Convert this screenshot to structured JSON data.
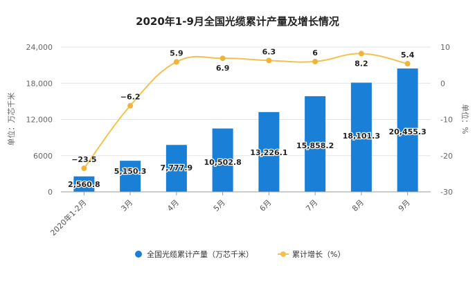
{
  "chart_data": {
    "type": "bar+line",
    "title": "2020年1-9月全国光缆累计产量及增长情况",
    "categories": [
      "2020年1-2月",
      "3月",
      "4月",
      "5月",
      "6月",
      "7月",
      "8月",
      "9月"
    ],
    "series": [
      {
        "name": "全国光缆累计产量（万芯千米）",
        "type": "bar",
        "axis": "left",
        "color": "#1a7fd6",
        "values": [
          2560.8,
          5150.3,
          7777.9,
          10502.8,
          13226.1,
          15858.2,
          18101.3,
          20455.3
        ],
        "labels": [
          "2,560.8",
          "5,150.3",
          "7,777.9",
          "10,502.8",
          "13,226.1",
          "15,858.2",
          "18,101.3",
          "20,455.3"
        ]
      },
      {
        "name": "累计增长（%）",
        "type": "line",
        "axis": "right",
        "color": "#f2c14e",
        "values": [
          -23.5,
          -6.2,
          5.9,
          6.9,
          6.3,
          6,
          8.2,
          5.4
        ],
        "labels": [
          "-23.5",
          "-6.2",
          "5.9",
          "6.9",
          "6.3",
          "6",
          "8.2",
          "5.4"
        ]
      }
    ],
    "ylabel_left": "单位：万芯千米",
    "ylabel_right": "单位：%",
    "ylim_left": [
      0,
      24000
    ],
    "yticks_left": [
      "0",
      "6000",
      "12,000",
      "18,000",
      "24,000"
    ],
    "ylim_right": [
      -30,
      10
    ],
    "yticks_right": [
      "-30",
      "-20",
      "-10",
      "0",
      "10"
    ],
    "grid": true,
    "legend_position": "bottom"
  }
}
